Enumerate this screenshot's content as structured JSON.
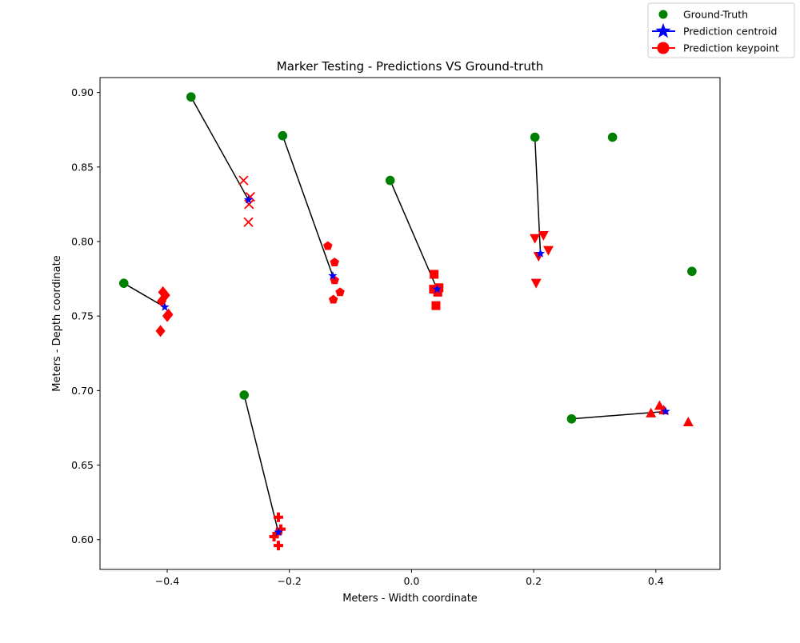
{
  "chart_data": {
    "type": "scatter",
    "title": "Marker Testing - Predictions VS Ground-truth",
    "xlabel": "Meters - Width coordinate",
    "ylabel": "Meters - Depth coordinate",
    "xlim": [
      -0.51,
      0.505
    ],
    "ylim": [
      0.58,
      0.91
    ],
    "xticks": [
      -0.4,
      -0.2,
      0.0,
      0.2,
      0.4
    ],
    "xtick_labels": [
      "−0.4",
      "−0.2",
      "0.0",
      "0.2",
      "0.4"
    ],
    "yticks": [
      0.6,
      0.65,
      0.7,
      0.75,
      0.8,
      0.85,
      0.9
    ],
    "ytick_labels": [
      "0.60",
      "0.65",
      "0.70",
      "0.75",
      "0.80",
      "0.85",
      "0.90"
    ],
    "grid": false,
    "legend": {
      "position": "top-right",
      "entries": [
        {
          "label": "Ground-Truth",
          "marker": "circle",
          "color": "#008000"
        },
        {
          "label": "Prediction centroid",
          "marker": "star",
          "color": "#0000ff"
        },
        {
          "label": "Prediction keypoint",
          "marker": "circle",
          "color": "#ff0000"
        }
      ]
    },
    "colors": {
      "ground_truth": "#008000",
      "centroid": "#0000ff",
      "keypoint": "#ff0000",
      "line": "#000000"
    },
    "unmatched_ground_truth": [
      {
        "x": 0.329,
        "y": 0.87
      },
      {
        "x": 0.459,
        "y": 0.78
      }
    ],
    "groups": [
      {
        "marker": "diamond",
        "ground_truth": {
          "x": -0.471,
          "y": 0.772
        },
        "centroid": {
          "x": -0.404,
          "y": 0.756
        },
        "keypoints": [
          {
            "x": -0.407,
            "y": 0.766
          },
          {
            "x": -0.403,
            "y": 0.764
          },
          {
            "x": -0.409,
            "y": 0.76
          },
          {
            "x": -0.398,
            "y": 0.751
          },
          {
            "x": -0.4,
            "y": 0.75
          },
          {
            "x": -0.411,
            "y": 0.74
          }
        ]
      },
      {
        "marker": "x",
        "ground_truth": {
          "x": -0.361,
          "y": 0.897
        },
        "centroid": {
          "x": -0.267,
          "y": 0.828
        },
        "keypoints": [
          {
            "x": -0.275,
            "y": 0.841
          },
          {
            "x": -0.264,
            "y": 0.83
          },
          {
            "x": -0.266,
            "y": 0.825
          },
          {
            "x": -0.267,
            "y": 0.813
          }
        ]
      },
      {
        "marker": "pentagon",
        "ground_truth": {
          "x": -0.211,
          "y": 0.871
        },
        "centroid": {
          "x": -0.129,
          "y": 0.777
        },
        "keypoints": [
          {
            "x": -0.137,
            "y": 0.797
          },
          {
            "x": -0.126,
            "y": 0.786
          },
          {
            "x": -0.126,
            "y": 0.774
          },
          {
            "x": -0.117,
            "y": 0.766
          },
          {
            "x": -0.128,
            "y": 0.761
          }
        ]
      },
      {
        "marker": "square",
        "ground_truth": {
          "x": -0.035,
          "y": 0.841
        },
        "centroid": {
          "x": 0.042,
          "y": 0.768
        },
        "keypoints": [
          {
            "x": 0.037,
            "y": 0.778
          },
          {
            "x": 0.045,
            "y": 0.769
          },
          {
            "x": 0.036,
            "y": 0.768
          },
          {
            "x": 0.043,
            "y": 0.766
          },
          {
            "x": 0.04,
            "y": 0.757
          }
        ]
      },
      {
        "marker": "triangle_down",
        "ground_truth": {
          "x": 0.202,
          "y": 0.87
        },
        "centroid": {
          "x": 0.211,
          "y": 0.792
        },
        "keypoints": [
          {
            "x": 0.216,
            "y": 0.804
          },
          {
            "x": 0.202,
            "y": 0.802
          },
          {
            "x": 0.224,
            "y": 0.794
          },
          {
            "x": 0.208,
            "y": 0.79
          },
          {
            "x": 0.204,
            "y": 0.772
          }
        ]
      },
      {
        "marker": "plus",
        "ground_truth": {
          "x": -0.274,
          "y": 0.697
        },
        "centroid": {
          "x": -0.218,
          "y": 0.605
        },
        "keypoints": [
          {
            "x": -0.218,
            "y": 0.615
          },
          {
            "x": -0.214,
            "y": 0.607
          },
          {
            "x": -0.225,
            "y": 0.602
          },
          {
            "x": -0.22,
            "y": 0.604
          },
          {
            "x": -0.218,
            "y": 0.596
          }
        ]
      },
      {
        "marker": "triangle_up",
        "ground_truth": {
          "x": 0.262,
          "y": 0.681
        },
        "centroid": {
          "x": 0.416,
          "y": 0.686
        },
        "keypoints": [
          {
            "x": 0.406,
            "y": 0.69
          },
          {
            "x": 0.392,
            "y": 0.685
          },
          {
            "x": 0.413,
            "y": 0.687
          },
          {
            "x": 0.453,
            "y": 0.679
          }
        ]
      }
    ]
  }
}
